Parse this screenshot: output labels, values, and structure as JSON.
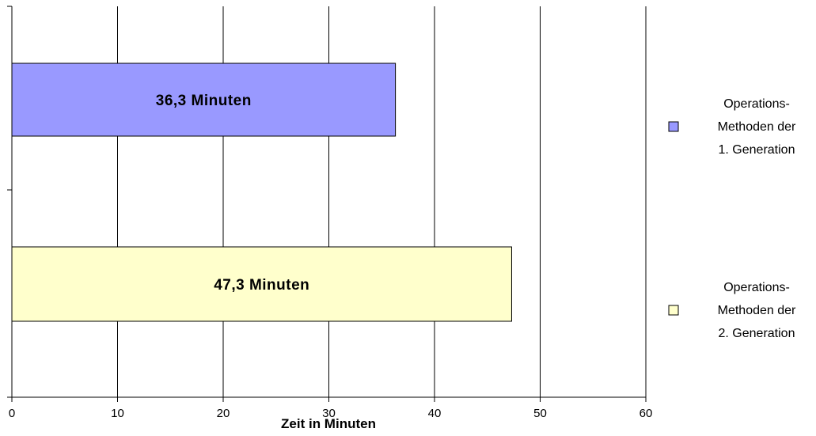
{
  "chart_data": {
    "type": "bar",
    "orientation": "horizontal",
    "xlabel": "Zeit in Minuten",
    "xlim": [
      0,
      60
    ],
    "xticks": [
      "0",
      "10",
      "20",
      "30",
      "40",
      "50",
      "60"
    ],
    "grid": true,
    "legend_position": "right",
    "series": [
      {
        "name": "Operations- Methoden der 1. Generation",
        "name_lines": [
          "Operations-",
          "Methoden der",
          "1. Generation"
        ],
        "value": 36.3,
        "label": "36,3 Minuten",
        "color": "#9999ff"
      },
      {
        "name": "Operations- Methoden der 2. Generation",
        "name_lines": [
          "Operations-",
          "Methoden der",
          "2. Generation"
        ],
        "value": 47.3,
        "label": "47,3 Minuten",
        "color": "#ffffcc"
      }
    ]
  }
}
